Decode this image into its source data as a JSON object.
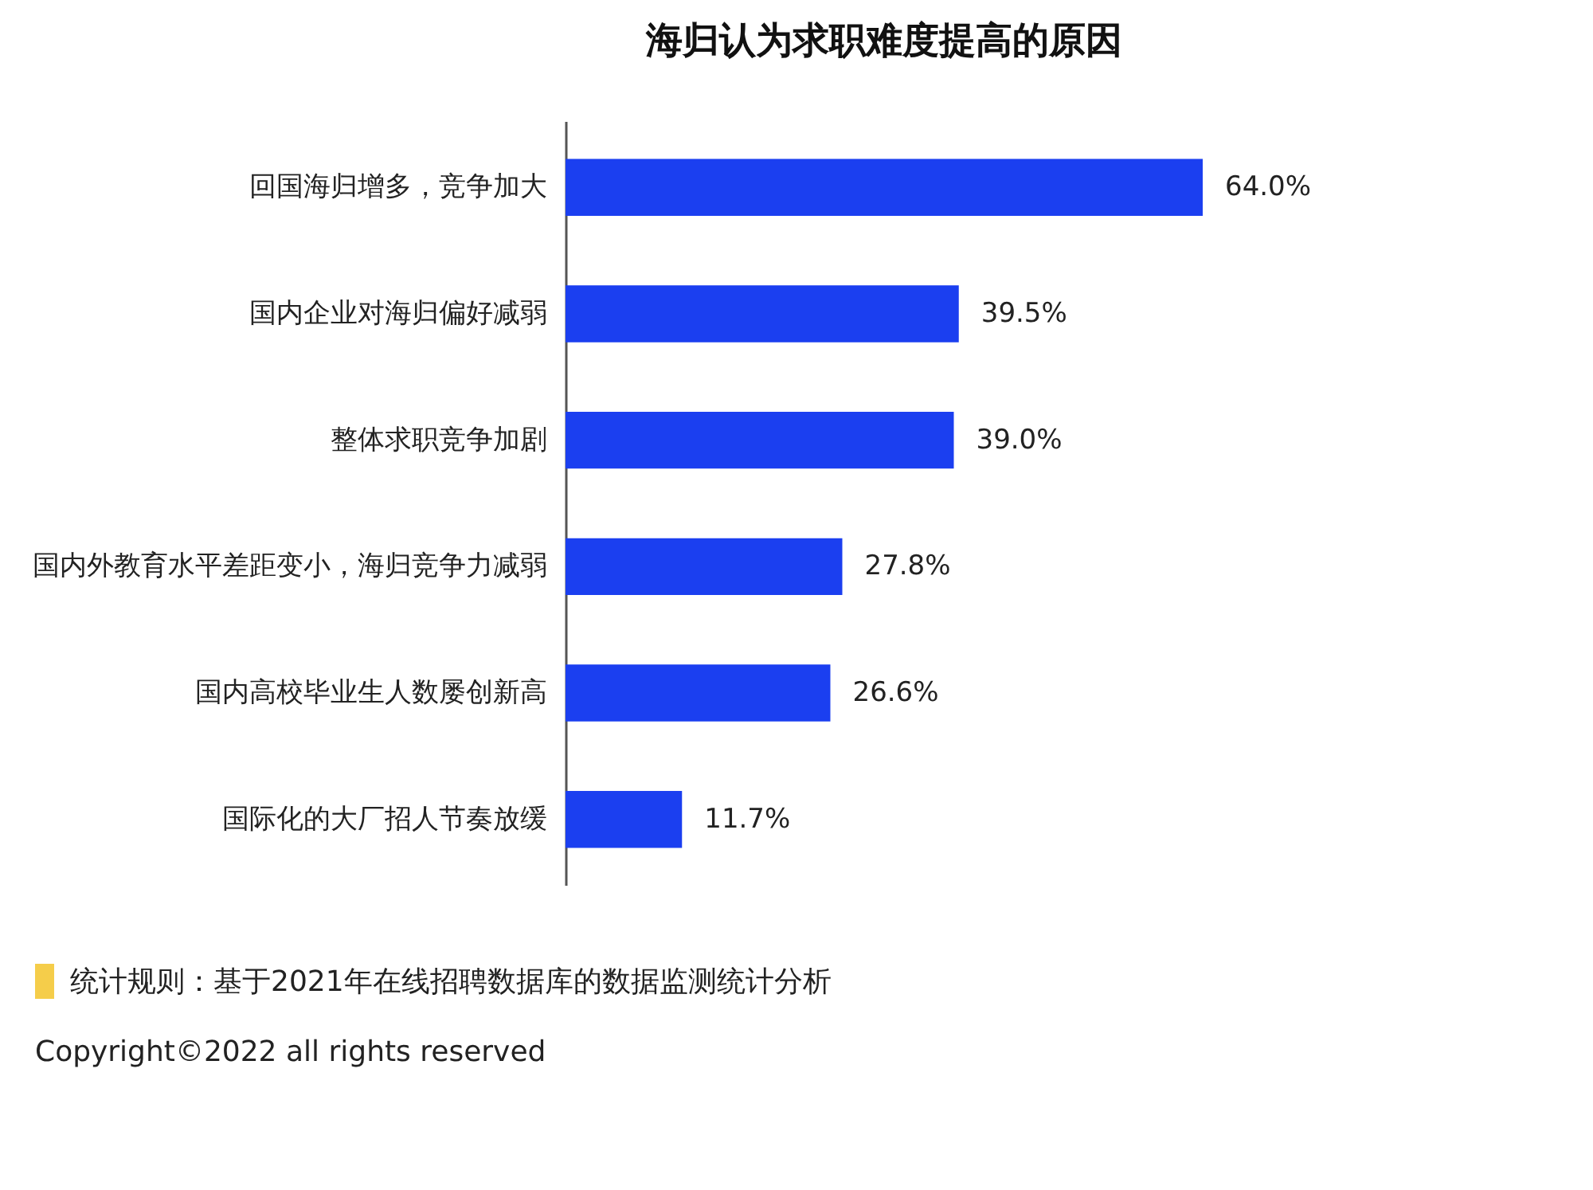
{
  "chart_data": {
    "type": "bar",
    "orientation": "horizontal",
    "title": "海归认为求职难度提高的原因",
    "categories": [
      "回国海归增多，竞争加大",
      "国内企业对海归偏好减弱",
      "整体求职竞争加剧",
      "国内外教育水平差距变小，海归竞争力减弱",
      "国内高校毕业生人数屡创新高",
      "国际化的大厂招人节奏放缓"
    ],
    "values": [
      64.0,
      39.5,
      39.0,
      27.8,
      26.6,
      11.7
    ],
    "value_labels": [
      "64.0%",
      "39.5%",
      "39.0%",
      "27.8%",
      "26.6%",
      "11.7%"
    ],
    "color": "#1b3ff0",
    "tick_labels": "y",
    "annotations": [
      "统计规则：基于2021年在线招聘数据库的数据监测统计分析",
      "Copyright©2022 all rights reserved"
    ]
  }
}
